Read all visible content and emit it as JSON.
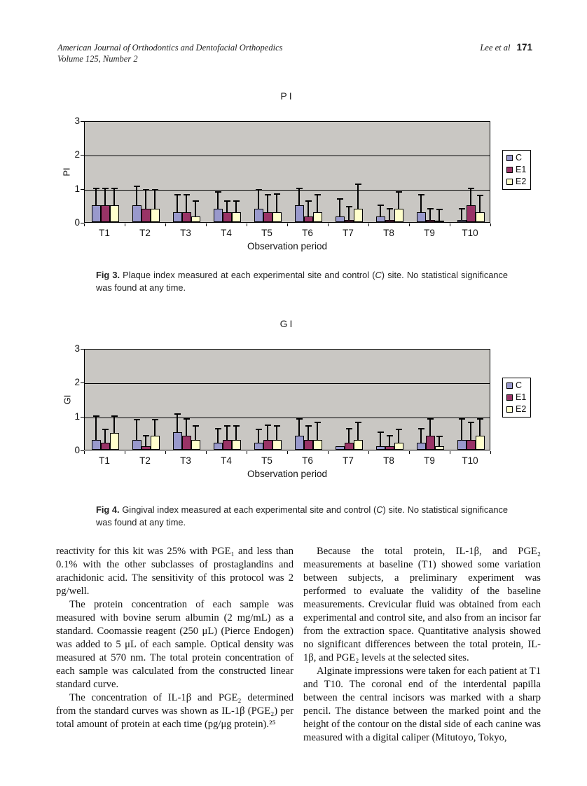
{
  "header": {
    "journal_line1": "American Journal of Orthodontics and Dentofacial Orthopedics",
    "journal_line2": "Volume 125, Number 2",
    "authors": "Lee et al",
    "page_number": "171"
  },
  "figures": [
    {
      "caption": {
        "label": "Fig 3.",
        "before_italic": " Plaque index measured at each experimental site and control (",
        "italic": "C",
        "after_italic": ") site. No statistical significance was found at any time."
      }
    },
    {
      "caption": {
        "label": "Fig 4.",
        "before_italic": " Gingival index measured at each experimental site and control (",
        "italic": "C",
        "after_italic": ") site. No statistical significance was found at any time."
      }
    }
  ],
  "chart_data": [
    {
      "type": "bar",
      "title": "PI",
      "ylabel": "PI",
      "xlabel": "Observation period",
      "ylim": [
        0,
        3
      ],
      "yticks": [
        0,
        1,
        2,
        3
      ],
      "grid": true,
      "legend_position": "right",
      "plot_bg": "#c9c7c3",
      "categories": [
        "T1",
        "T2",
        "T3",
        "T4",
        "T5",
        "T6",
        "T7",
        "T8",
        "T9",
        "T10"
      ],
      "series": [
        {
          "name": "C",
          "color": "#9999CC",
          "values": [
            0.5,
            0.5,
            0.3,
            0.4,
            0.4,
            0.5,
            0.17,
            0.17,
            0.3,
            0.07
          ],
          "errors_high": [
            1.0,
            1.05,
            0.8,
            0.9,
            0.95,
            1.0,
            0.68,
            0.5,
            0.8,
            0.4
          ]
        },
        {
          "name": "E1",
          "color": "#993366",
          "values": [
            0.5,
            0.4,
            0.3,
            0.3,
            0.3,
            0.17,
            0.07,
            0.07,
            0.07,
            0.5
          ],
          "errors_high": [
            1.0,
            0.95,
            0.8,
            0.62,
            0.8,
            0.62,
            0.45,
            0.4,
            0.4,
            1.0
          ]
        },
        {
          "name": "E2",
          "color": "#FFFFCC",
          "values": [
            0.5,
            0.4,
            0.17,
            0.3,
            0.3,
            0.3,
            0.4,
            0.4,
            0.05,
            0.3
          ],
          "errors_high": [
            1.0,
            0.95,
            0.62,
            0.62,
            0.82,
            0.8,
            1.12,
            0.9,
            0.38,
            0.78
          ]
        }
      ]
    },
    {
      "type": "bar",
      "title": "GI",
      "ylabel": "GI",
      "xlabel": "Observation period",
      "ylim": [
        0,
        3
      ],
      "yticks": [
        0,
        1,
        2,
        3
      ],
      "grid": true,
      "legend_position": "right",
      "plot_bg": "#c9c7c3",
      "categories": [
        "T1",
        "T2",
        "T3",
        "T4",
        "T5",
        "T6",
        "T7",
        "T8",
        "T9",
        "T10"
      ],
      "series": [
        {
          "name": "C",
          "color": "#9999CC",
          "values": [
            0.3,
            0.3,
            0.52,
            0.2,
            0.2,
            0.42,
            0.1,
            0.1,
            0.2,
            0.3
          ],
          "errors_high": [
            1.0,
            0.9,
            1.05,
            0.62,
            0.6,
            0.92,
            null,
            0.52,
            0.62,
            0.92
          ]
        },
        {
          "name": "E1",
          "color": "#993366",
          "values": [
            0.2,
            0.1,
            0.42,
            0.3,
            0.3,
            0.3,
            0.2,
            0.1,
            0.42,
            0.3
          ],
          "errors_high": [
            0.6,
            0.42,
            0.92,
            0.7,
            0.72,
            0.7,
            0.62,
            0.42,
            0.92,
            0.8
          ]
        },
        {
          "name": "E2",
          "color": "#FFFFCC",
          "values": [
            0.5,
            0.42,
            0.3,
            0.3,
            0.3,
            0.3,
            0.3,
            0.2,
            0.1,
            0.42
          ],
          "errors_high": [
            1.0,
            0.9,
            0.7,
            0.7,
            0.7,
            0.8,
            0.8,
            0.6,
            0.4,
            0.92
          ]
        }
      ]
    }
  ],
  "body": {
    "left": [
      {
        "indent": false,
        "text": "reactivity for this kit was 25% with PGE₁ and less than 0.1% with the other subclasses of prostaglandins and arachidonic acid. The sensitivity of this protocol was 2 pg/well."
      },
      {
        "indent": true,
        "text": "The protein concentration of each sample was measured with bovine serum albumin (2 mg/mL) as a standard. Coomassie reagent (250 μL) (Pierce Endogen) was added to 5 μL of each sample. Optical density was measured at 570 nm. The total protein concentration of each sample was calculated from the constructed linear standard curve."
      },
      {
        "indent": true,
        "text": "The concentration of IL-1β and PGE₂ determined from the standard curves was shown as IL-1β (PGE₂) per total amount of protein at each time (pg/μg protein).²⁵"
      }
    ],
    "right": [
      {
        "indent": true,
        "text": "Because the total protein, IL-1β, and PGE₂ measurements at baseline (T1) showed some variation between subjects, a preliminary experiment was performed to evaluate the validity of the baseline measurements. Crevicular fluid was obtained from each experimental and control site, and also from an incisor far from the extraction space. Quantitative analysis showed no significant differences between the total protein, IL-1β, and PGE₂ levels at the selected sites."
      },
      {
        "indent": true,
        "text": "Alginate impressions were taken for each patient at T1 and T10. The coronal end of the interdental papilla between the central incisors was marked with a sharp pencil. The distance between the marked point and the height of the contour on the distal side of each canine was measured with a digital caliper (Mitutoyo, Tokyo,"
      }
    ]
  }
}
